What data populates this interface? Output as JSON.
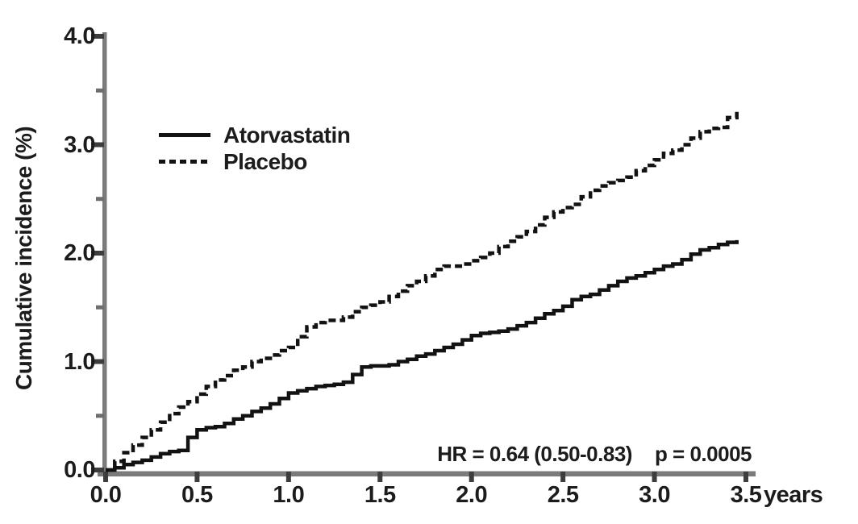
{
  "figure": {
    "background": "#ffffff",
    "axis_color": "#7b7b7b",
    "major_tick_color": "#3d3d3d",
    "minor_tick_color": "#6e6e6e",
    "text_color": "#1c1c1c",
    "curve_color": "#121212"
  },
  "legend": {
    "items": [
      {
        "label": "Atorvastatin",
        "style": "solid"
      },
      {
        "label": "Placebo",
        "style": "dashed"
      }
    ]
  },
  "annotation": {
    "hazard_ratio": "HR = 0.64 (0.50-0.83)",
    "p_value": "p = 0.0005"
  },
  "chart_data": {
    "type": "line",
    "title": "",
    "xlabel": "years",
    "ylabel": "Cumulative incidence (%)",
    "xlim": [
      0,
      3.5
    ],
    "ylim": [
      0,
      4.0
    ],
    "x_ticks": [
      0.0,
      0.5,
      1.0,
      1.5,
      2.0,
      2.5,
      3.0,
      3.5
    ],
    "x_tick_labels": [
      "0.0",
      "0.5",
      "1.0",
      "1.5",
      "2.0",
      "2.5",
      "3.0",
      "3.5"
    ],
    "y_ticks": [
      0.0,
      1.0,
      2.0,
      3.0,
      4.0
    ],
    "y_tick_labels": [
      "0.0",
      "1.0",
      "2.0",
      "3.0",
      "4.0"
    ],
    "y_minor_ticks": [
      0.5,
      1.5,
      2.5,
      3.5
    ],
    "grid": false,
    "legend_position": "upper-left-inside",
    "series": [
      {
        "name": "Atorvastatin",
        "line": "solid",
        "x": [
          0.0,
          0.05,
          0.1,
          0.15,
          0.2,
          0.25,
          0.3,
          0.35,
          0.4,
          0.45,
          0.5,
          0.55,
          0.6,
          0.65,
          0.7,
          0.75,
          0.8,
          0.85,
          0.9,
          0.95,
          1.0,
          1.05,
          1.1,
          1.15,
          1.2,
          1.25,
          1.3,
          1.35,
          1.4,
          1.45,
          1.5,
          1.55,
          1.6,
          1.65,
          1.7,
          1.75,
          1.8,
          1.85,
          1.9,
          1.95,
          2.0,
          2.05,
          2.1,
          2.15,
          2.2,
          2.25,
          2.3,
          2.35,
          2.4,
          2.45,
          2.5,
          2.55,
          2.6,
          2.65,
          2.7,
          2.75,
          2.8,
          2.85,
          2.9,
          2.95,
          3.0,
          3.05,
          3.1,
          3.15,
          3.2,
          3.25,
          3.3,
          3.35,
          3.4,
          3.45
        ],
        "y": [
          0.0,
          0.02,
          0.05,
          0.07,
          0.09,
          0.12,
          0.15,
          0.17,
          0.18,
          0.3,
          0.37,
          0.39,
          0.4,
          0.43,
          0.47,
          0.5,
          0.54,
          0.57,
          0.61,
          0.66,
          0.71,
          0.73,
          0.75,
          0.77,
          0.78,
          0.79,
          0.81,
          0.88,
          0.95,
          0.96,
          0.96,
          0.97,
          1.0,
          1.02,
          1.05,
          1.07,
          1.1,
          1.13,
          1.16,
          1.2,
          1.24,
          1.26,
          1.27,
          1.28,
          1.3,
          1.33,
          1.36,
          1.4,
          1.44,
          1.47,
          1.51,
          1.57,
          1.6,
          1.62,
          1.66,
          1.7,
          1.74,
          1.77,
          1.79,
          1.82,
          1.85,
          1.88,
          1.9,
          1.94,
          1.99,
          2.03,
          2.05,
          2.08,
          2.1,
          2.12
        ]
      },
      {
        "name": "Placebo",
        "line": "dashed",
        "x": [
          0.0,
          0.05,
          0.1,
          0.15,
          0.2,
          0.25,
          0.3,
          0.35,
          0.4,
          0.45,
          0.5,
          0.55,
          0.6,
          0.65,
          0.7,
          0.75,
          0.8,
          0.85,
          0.9,
          0.95,
          1.0,
          1.05,
          1.1,
          1.15,
          1.2,
          1.25,
          1.3,
          1.35,
          1.4,
          1.45,
          1.5,
          1.55,
          1.6,
          1.65,
          1.7,
          1.75,
          1.8,
          1.85,
          1.9,
          1.95,
          2.0,
          2.05,
          2.1,
          2.15,
          2.2,
          2.25,
          2.3,
          2.35,
          2.4,
          2.45,
          2.5,
          2.55,
          2.6,
          2.65,
          2.7,
          2.75,
          2.8,
          2.85,
          2.9,
          2.95,
          3.0,
          3.05,
          3.1,
          3.15,
          3.2,
          3.25,
          3.3,
          3.35,
          3.4,
          3.45
        ],
        "y": [
          0.0,
          0.08,
          0.16,
          0.23,
          0.3,
          0.37,
          0.44,
          0.52,
          0.58,
          0.63,
          0.7,
          0.77,
          0.83,
          0.87,
          0.92,
          0.95,
          1.0,
          1.03,
          1.06,
          1.1,
          1.13,
          1.23,
          1.32,
          1.36,
          1.38,
          1.38,
          1.41,
          1.46,
          1.5,
          1.52,
          1.55,
          1.6,
          1.65,
          1.7,
          1.74,
          1.79,
          1.85,
          1.88,
          1.88,
          1.9,
          1.93,
          1.96,
          2.0,
          2.06,
          2.11,
          2.15,
          2.2,
          2.26,
          2.33,
          2.38,
          2.42,
          2.45,
          2.52,
          2.58,
          2.62,
          2.65,
          2.67,
          2.7,
          2.76,
          2.81,
          2.86,
          2.92,
          2.95,
          3.0,
          3.06,
          3.12,
          3.15,
          3.16,
          3.25,
          3.33
        ]
      }
    ],
    "annotations": [
      "HR = 0.64 (0.50-0.83)",
      "p = 0.0005"
    ]
  }
}
